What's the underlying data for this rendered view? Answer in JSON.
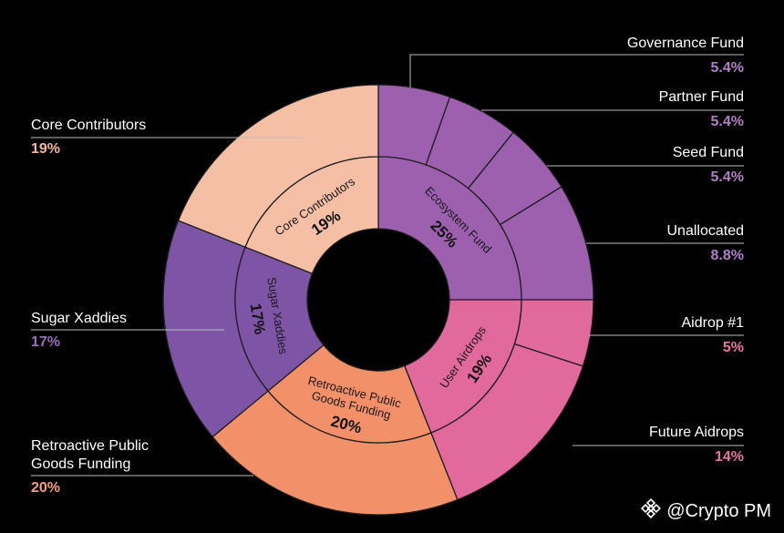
{
  "chart_data": {
    "type": "sunburst",
    "inner": [
      {
        "name": "Ecosystem Fund",
        "value": "25%",
        "color": "#9D60AE"
      },
      {
        "name": "User Airdrops",
        "value": "19%",
        "color": "#E2699B"
      },
      {
        "name": "Retroactive Public Goods Funding",
        "value": "20%",
        "color": "#F2906A"
      },
      {
        "name": "Sugar Xaddies",
        "value": "17%",
        "color": "#7E55A6"
      },
      {
        "name": "Core Contributors",
        "value": "19%",
        "color": "#F5BFA5"
      }
    ],
    "outer": [
      {
        "name": "Governance Fund",
        "value": "5.4%",
        "parent": "Ecosystem Fund",
        "color": "#9D60AE",
        "label_color": "#B27FC6"
      },
      {
        "name": "Partner Fund",
        "value": "5.4%",
        "parent": "Ecosystem Fund",
        "color": "#9D60AE",
        "label_color": "#B27FC6"
      },
      {
        "name": "Seed Fund",
        "value": "5.4%",
        "parent": "Ecosystem Fund",
        "color": "#9D60AE",
        "label_color": "#B27FC6"
      },
      {
        "name": "Unallocated",
        "value": "8.8%",
        "parent": "Ecosystem Fund",
        "color": "#9D60AE",
        "label_color": "#B27FC6"
      },
      {
        "name": "Aidrop #1",
        "value": "5%",
        "parent": "User Airdrops",
        "color": "#E2699B",
        "label_color": "#E977A5"
      },
      {
        "name": "Future Aidrops",
        "value": "14%",
        "parent": "User Airdrops",
        "color": "#E2699B",
        "label_color": "#E977A5"
      },
      {
        "name": "Retroactive Public Goods Funding",
        "value": "20%",
        "parent": "Retroactive Public Goods Funding",
        "color": "#F2906A",
        "label_color": "#F4A07C"
      },
      {
        "name": "Sugar Xaddies",
        "value": "17%",
        "parent": "Sugar Xaddies",
        "color": "#7E55A6",
        "label_color": "#9A6DBF"
      },
      {
        "name": "Core Contributors",
        "value": "19%",
        "parent": "Core Contributors",
        "color": "#F5BFA5",
        "label_color": "#F5B89A"
      }
    ]
  },
  "watermark": {
    "text": "@Crypto PM",
    "icon": "binance-diamond-icon"
  }
}
